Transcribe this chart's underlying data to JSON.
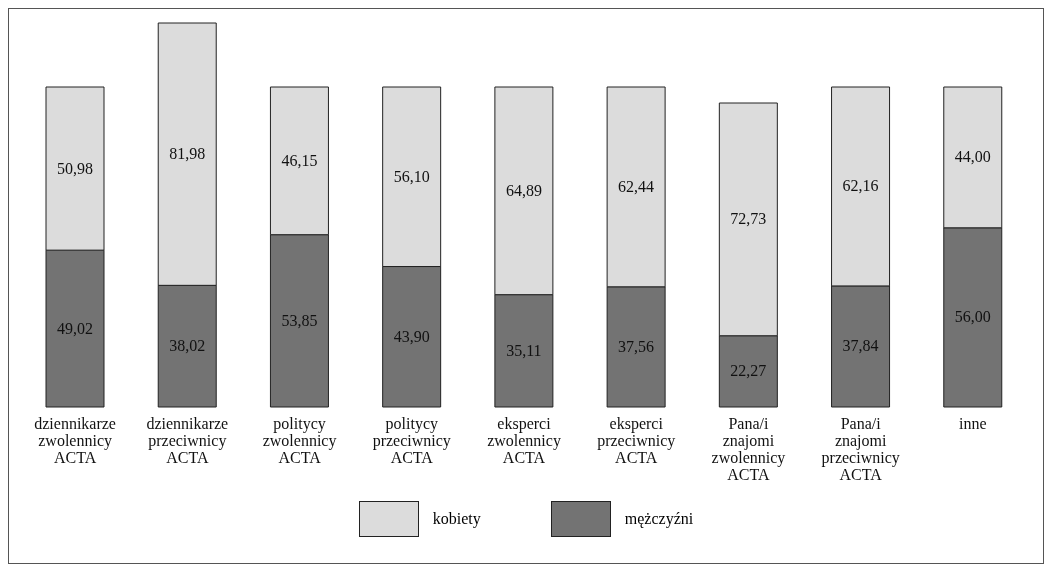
{
  "chart_data": {
    "type": "bar",
    "stacked": true,
    "categories": [
      "dziennikarze zwolennicy ACTA",
      "dziennikarze przeciwnicy ACTA",
      "politycy zwolennicy ACTA",
      "politycy przeciwnicy ACTA",
      "eksperci zwolennicy ACTA",
      "eksperci przeciwnicy ACTA",
      "Pana/i znajomi zwolennicy ACTA",
      "Pana/i znajomi przeciwnicy ACTA",
      "inne"
    ],
    "series": [
      {
        "name": "mężczyźni",
        "color": "#737373",
        "values": [
          49.02,
          38.02,
          53.85,
          43.9,
          35.11,
          37.56,
          22.27,
          37.84,
          56.0
        ],
        "value_labels": [
          "49,02",
          "38,02",
          "53,85",
          "43,90",
          "35,11",
          "37,56",
          "22,27",
          "37,84",
          "56,00"
        ]
      },
      {
        "name": "kobiety",
        "color": "#dcdcdc",
        "values": [
          50.98,
          81.98,
          46.15,
          56.1,
          64.89,
          62.44,
          72.73,
          62.16,
          44.0
        ],
        "value_labels": [
          "50,98",
          "81,98",
          "46,15",
          "56,10",
          "64,89",
          "62,44",
          "72,73",
          "62,16",
          "44,00"
        ]
      }
    ],
    "legend": "bottom",
    "tick_labels": "x"
  }
}
